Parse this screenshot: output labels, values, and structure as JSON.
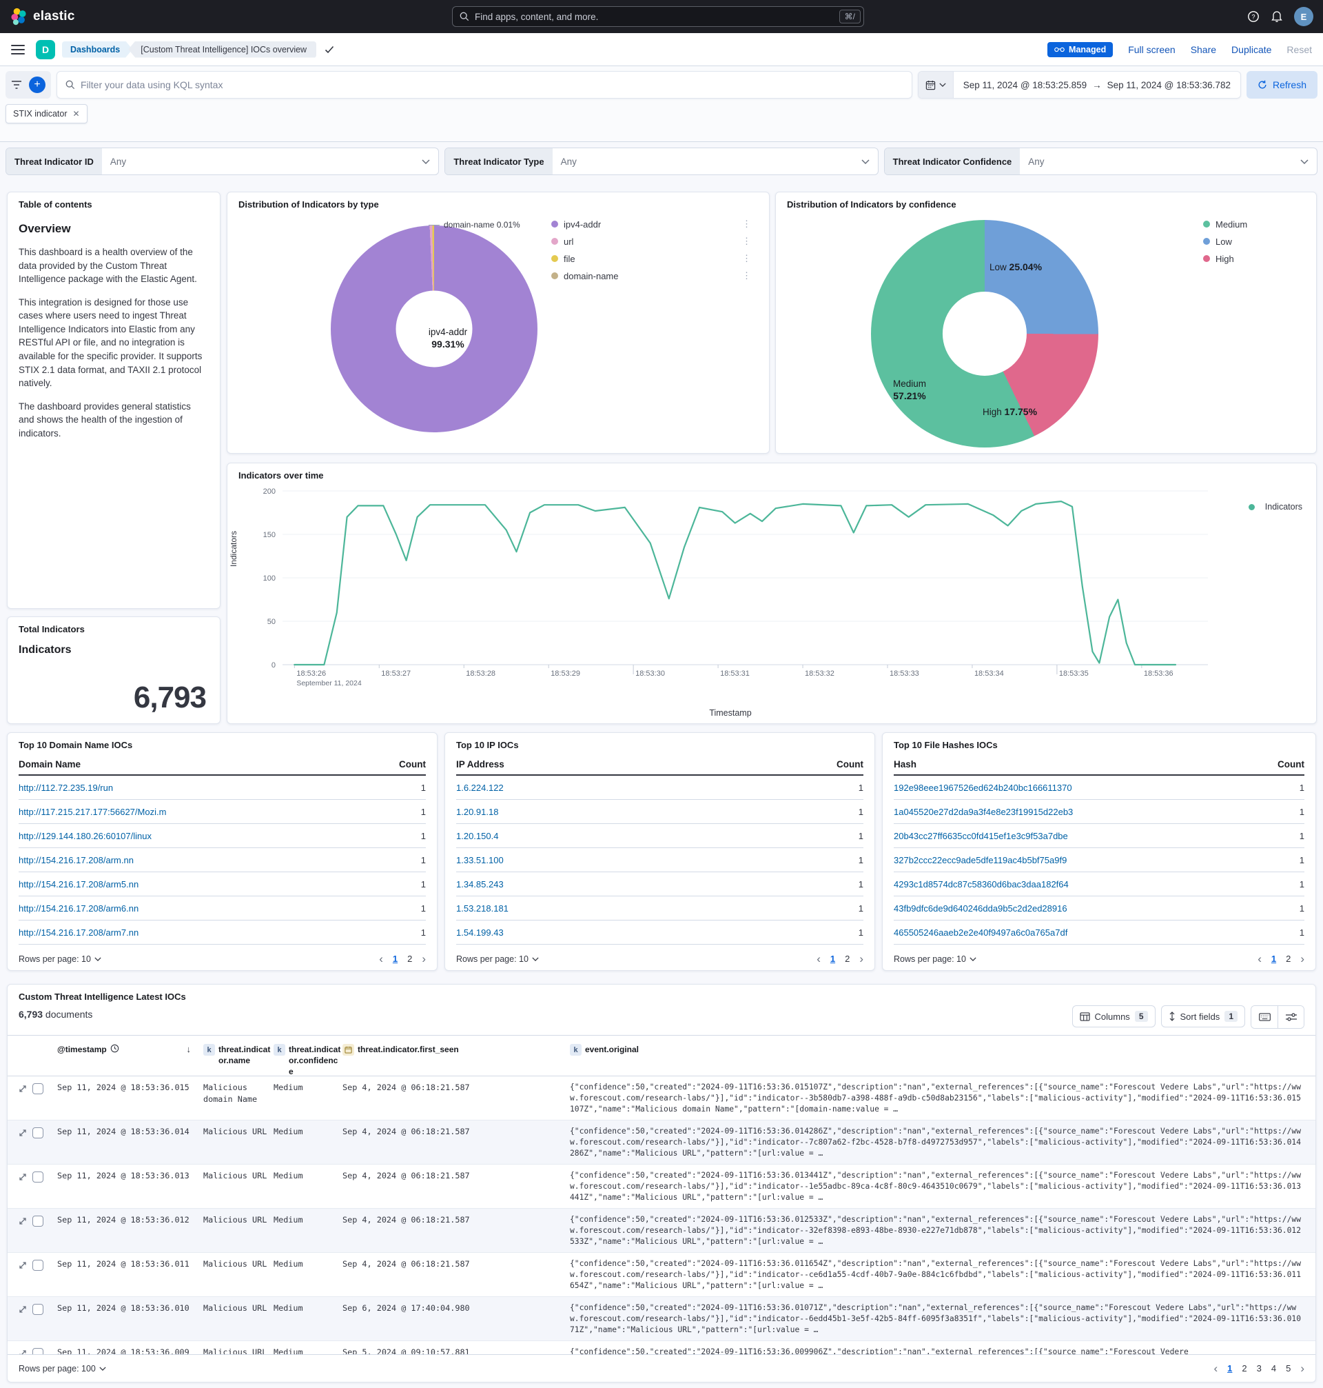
{
  "header": {
    "logo_text": "elastic",
    "search_placeholder": "Find apps, content, and more.",
    "search_shortcut": "⌘/",
    "avatar_initial": "E"
  },
  "breadcrumbs": {
    "app": "Dashboards",
    "page": "[Custom Threat Intelligence] IOCs overview"
  },
  "page_actions": {
    "managed": "Managed",
    "full_screen": "Full screen",
    "share": "Share",
    "duplicate": "Duplicate",
    "reset": "Reset"
  },
  "query_bar": {
    "placeholder": "Filter your data using KQL syntax",
    "date_from": "Sep 11, 2024 @ 18:53:25.859",
    "date_arrow": "→",
    "date_to": "Sep 11, 2024 @ 18:53:36.782",
    "refresh_label": "Refresh",
    "filter_pill": "STIX indicator"
  },
  "controls": [
    {
      "label": "Threat Indicator ID",
      "value": "Any"
    },
    {
      "label": "Threat Indicator Type",
      "value": "Any"
    },
    {
      "label": "Threat Indicator Confidence",
      "value": "Any"
    }
  ],
  "toc": {
    "title": "Table of contents",
    "heading": "Overview",
    "paragraphs": [
      "This dashboard is a health overview of the data provided by the Custom Threat Intelligence package with the Elastic Agent.",
      "This integration is designed for those use cases where users need to ingest Threat Intelligence Indicators into Elastic from any RESTful API or file, and no integration is available for the specific provider. It supports STIX 2.1 data format, and TAXII 2.1 protocol natively.",
      "The dashboard provides general statistics and shows the health of the ingestion of indicators."
    ]
  },
  "chart_data": [
    {
      "type": "pie",
      "title": "Distribution of Indicators by type",
      "slices": [
        {
          "label": "ipv4-addr",
          "pct": 99.31,
          "color": "#a283d3"
        },
        {
          "label": "url",
          "pct": 0.4,
          "color": "#e3a6c9"
        },
        {
          "label": "file",
          "pct": 0.28,
          "color": "#e4ca50"
        },
        {
          "label": "domain-name",
          "pct": 0.01,
          "color": "#c3b189"
        }
      ],
      "inner_label_name": "ipv4-addr",
      "inner_label_pct": "99.31%",
      "callout": "domain-name  0.01%",
      "legend": [
        "ipv4-addr",
        "url",
        "file",
        "domain-name"
      ],
      "legend_position": "right"
    },
    {
      "type": "pie",
      "title": "Distribution of Indicators by confidence",
      "slices": [
        {
          "label": "Low",
          "pct": 25.04,
          "color": "#6f9fd8"
        },
        {
          "label": "High",
          "pct": 17.75,
          "color": "#e0688c"
        },
        {
          "label": "Medium",
          "pct": 57.21,
          "color": "#5cc09f"
        }
      ],
      "labels": [
        {
          "name": "Low",
          "pct": "25.04%"
        },
        {
          "name": "Medium",
          "pct": "57.21%"
        },
        {
          "name": "High",
          "pct": "17.75%"
        }
      ],
      "legend": [
        "Medium",
        "Low",
        "High"
      ],
      "legend_colors": [
        "#5cc09f",
        "#6f9fd8",
        "#e0688c"
      ],
      "legend_position": "right"
    },
    {
      "type": "line",
      "title": "Indicators over time",
      "xlabel": "Timestamp",
      "ylabel": "Indicators",
      "ylim": [
        0,
        200
      ],
      "yticks": [
        0,
        50,
        100,
        150,
        200
      ],
      "xlim": [
        25.859,
        36.782
      ],
      "xticks": [
        "18:53:26",
        "18:53:27",
        "18:53:28",
        "18:53:29",
        "18:53:30",
        "18:53:31",
        "18:53:32",
        "18:53:33",
        "18:53:34",
        "18:53:35",
        "18:53:36"
      ],
      "x_context": "September 11, 2024",
      "legend": [
        "Indicators"
      ],
      "series": [
        {
          "name": "Indicators",
          "color": "#4cb699",
          "points": [
            [
              26.0,
              0
            ],
            [
              26.35,
              0
            ],
            [
              26.5,
              60
            ],
            [
              26.62,
              170
            ],
            [
              26.75,
              183
            ],
            [
              27.05,
              183
            ],
            [
              27.2,
              150
            ],
            [
              27.32,
              120
            ],
            [
              27.45,
              170
            ],
            [
              27.6,
              184
            ],
            [
              28.25,
              184
            ],
            [
              28.5,
              155
            ],
            [
              28.62,
              130
            ],
            [
              28.78,
              175
            ],
            [
              28.95,
              184
            ],
            [
              29.35,
              184
            ],
            [
              29.55,
              177
            ],
            [
              29.9,
              181
            ],
            [
              30.2,
              140
            ],
            [
              30.42,
              76
            ],
            [
              30.6,
              135
            ],
            [
              30.78,
              181
            ],
            [
              31.05,
              176
            ],
            [
              31.2,
              163
            ],
            [
              31.38,
              174
            ],
            [
              31.52,
              165
            ],
            [
              31.68,
              180
            ],
            [
              32.0,
              185
            ],
            [
              32.45,
              183
            ],
            [
              32.6,
              152
            ],
            [
              32.75,
              183
            ],
            [
              33.05,
              184
            ],
            [
              33.25,
              170
            ],
            [
              33.45,
              184
            ],
            [
              33.95,
              185
            ],
            [
              34.25,
              172
            ],
            [
              34.42,
              160
            ],
            [
              34.58,
              177
            ],
            [
              34.75,
              185
            ],
            [
              35.05,
              188
            ],
            [
              35.18,
              182
            ],
            [
              35.3,
              90
            ],
            [
              35.42,
              15
            ],
            [
              35.5,
              2
            ],
            [
              35.62,
              55
            ],
            [
              35.72,
              75
            ],
            [
              35.82,
              25
            ],
            [
              35.92,
              0
            ],
            [
              36.4,
              0
            ]
          ]
        }
      ]
    }
  ],
  "total_panel": {
    "title": "Total Indicators",
    "label": "Indicators",
    "value": "6,793"
  },
  "top_tables": [
    {
      "title": "Top 10 Domain Name IOCs",
      "col_key": "Domain Name",
      "col_count": "Count",
      "rows": [
        [
          "http://112.72.235.19/run",
          "1"
        ],
        [
          "http://117.215.217.177:56627/Mozi.m",
          "1"
        ],
        [
          "http://129.144.180.26:60107/linux",
          "1"
        ],
        [
          "http://154.216.17.208/arm.nn",
          "1"
        ],
        [
          "http://154.216.17.208/arm5.nn",
          "1"
        ],
        [
          "http://154.216.17.208/arm6.nn",
          "1"
        ],
        [
          "http://154.216.17.208/arm7.nn",
          "1"
        ]
      ],
      "rows_per_page": "Rows per page: 10",
      "pages": [
        "1",
        "2"
      ],
      "active_page": "1"
    },
    {
      "title": "Top 10 IP IOCs",
      "col_key": "IP Address",
      "col_count": "Count",
      "rows": [
        [
          "1.6.224.122",
          "1"
        ],
        [
          "1.20.91.18",
          "1"
        ],
        [
          "1.20.150.4",
          "1"
        ],
        [
          "1.33.51.100",
          "1"
        ],
        [
          "1.34.85.243",
          "1"
        ],
        [
          "1.53.218.181",
          "1"
        ],
        [
          "1.54.199.43",
          "1"
        ]
      ],
      "rows_per_page": "Rows per page: 10",
      "pages": [
        "1",
        "2"
      ],
      "active_page": "1"
    },
    {
      "title": "Top 10 File Hashes IOCs",
      "col_key": "Hash",
      "col_count": "Count",
      "rows": [
        [
          "192e98eee1967526ed624b240bc166611370",
          "1"
        ],
        [
          "1a045520e27d2da9a3f4e8e23f19915d22eb3",
          "1"
        ],
        [
          "20b43cc27ff6635cc0fd415ef1e3c9f53a7dbe",
          "1"
        ],
        [
          "327b2ccc22ecc9ade5dfe119ac4b5bf75a9f9",
          "1"
        ],
        [
          "4293c1d8574dc87c58360d6bac3daa182f64",
          "1"
        ],
        [
          "43fb9dfc6de9d640246dda9b5c2d2ed28916",
          "1"
        ],
        [
          "465505246aaeb2e2e40f9497a6c0a765a7df",
          "1"
        ]
      ],
      "rows_per_page": "Rows per page: 10",
      "pages": [
        "1",
        "2"
      ],
      "active_page": "1"
    }
  ],
  "documents": {
    "title": "Custom Threat Intelligence Latest IOCs",
    "count": "6,793",
    "count_suffix": " documents",
    "toolbar": {
      "columns_label": "Columns",
      "columns_count": "5",
      "sort_label": "Sort fields",
      "sort_count": "1"
    },
    "columns": [
      {
        "label": "@timestamp",
        "icon": "clock-icon",
        "sorted": "desc"
      },
      {
        "label": "threat.indicator.name",
        "icon": "keyword-icon"
      },
      {
        "label": "threat.indicator.confidence",
        "icon": "keyword-icon"
      },
      {
        "label": "threat.indicator.first_seen",
        "icon": "calendar-icon"
      },
      {
        "label": "event.original",
        "icon": "keyword-icon"
      }
    ],
    "rows": [
      {
        "timestamp": "Sep 11, 2024 @ 18:53:36.015",
        "name": "Malicious domain Name",
        "confidence": "Medium",
        "first_seen": "Sep 4, 2024 @ 06:18:21.587",
        "original": "{\"confidence\":50,\"created\":\"2024-09-11T16:53:36.015107Z\",\"description\":\"nan\",\"external_references\":[{\"source_name\":\"Forescout Vedere Labs\",\"url\":\"https://www.forescout.com/research-labs/\"}],\"id\":\"indicator--3b580db7-a398-488f-a9db-c50d8ab23156\",\"labels\":[\"malicious-activity\"],\"modified\":\"2024-09-11T16:53:36.015107Z\",\"name\":\"Malicious domain Name\",\"pattern\":\"[domain-name:value = …"
      },
      {
        "timestamp": "Sep 11, 2024 @ 18:53:36.014",
        "name": "Malicious URL",
        "confidence": "Medium",
        "first_seen": "Sep 4, 2024 @ 06:18:21.587",
        "original": "{\"confidence\":50,\"created\":\"2024-09-11T16:53:36.014286Z\",\"description\":\"nan\",\"external_references\":[{\"source_name\":\"Forescout Vedere Labs\",\"url\":\"https://www.forescout.com/research-labs/\"}],\"id\":\"indicator--7c807a62-f2bc-4528-b7f8-d4972753d957\",\"labels\":[\"malicious-activity\"],\"modified\":\"2024-09-11T16:53:36.014286Z\",\"name\":\"Malicious URL\",\"pattern\":\"[url:value = …"
      },
      {
        "timestamp": "Sep 11, 2024 @ 18:53:36.013",
        "name": "Malicious URL",
        "confidence": "Medium",
        "first_seen": "Sep 4, 2024 @ 06:18:21.587",
        "original": "{\"confidence\":50,\"created\":\"2024-09-11T16:53:36.013441Z\",\"description\":\"nan\",\"external_references\":[{\"source_name\":\"Forescout Vedere Labs\",\"url\":\"https://www.forescout.com/research-labs/\"}],\"id\":\"indicator--1e55adbc-89ca-4c8f-80c9-4643510c0679\",\"labels\":[\"malicious-activity\"],\"modified\":\"2024-09-11T16:53:36.013441Z\",\"name\":\"Malicious URL\",\"pattern\":\"[url:value = …"
      },
      {
        "timestamp": "Sep 11, 2024 @ 18:53:36.012",
        "name": "Malicious URL",
        "confidence": "Medium",
        "first_seen": "Sep 4, 2024 @ 06:18:21.587",
        "original": "{\"confidence\":50,\"created\":\"2024-09-11T16:53:36.012533Z\",\"description\":\"nan\",\"external_references\":[{\"source_name\":\"Forescout Vedere Labs\",\"url\":\"https://www.forescout.com/research-labs/\"}],\"id\":\"indicator--32ef8398-e893-48be-8930-e227e71db878\",\"labels\":[\"malicious-activity\"],\"modified\":\"2024-09-11T16:53:36.012533Z\",\"name\":\"Malicious URL\",\"pattern\":\"[url:value = …"
      },
      {
        "timestamp": "Sep 11, 2024 @ 18:53:36.011",
        "name": "Malicious URL",
        "confidence": "Medium",
        "first_seen": "Sep 4, 2024 @ 06:18:21.587",
        "original": "{\"confidence\":50,\"created\":\"2024-09-11T16:53:36.011654Z\",\"description\":\"nan\",\"external_references\":[{\"source_name\":\"Forescout Vedere Labs\",\"url\":\"https://www.forescout.com/research-labs/\"}],\"id\":\"indicator--ce6d1a55-4cdf-40b7-9a0e-884c1c6fbdbd\",\"labels\":[\"malicious-activity\"],\"modified\":\"2024-09-11T16:53:36.011654Z\",\"name\":\"Malicious URL\",\"pattern\":\"[url:value = …"
      },
      {
        "timestamp": "Sep 11, 2024 @ 18:53:36.010",
        "name": "Malicious URL",
        "confidence": "Medium",
        "first_seen": "Sep 6, 2024 @ 17:40:04.980",
        "original": "{\"confidence\":50,\"created\":\"2024-09-11T16:53:36.01071Z\",\"description\":\"nan\",\"external_references\":[{\"source_name\":\"Forescout Vedere Labs\",\"url\":\"https://www.forescout.com/research-labs/\"}],\"id\":\"indicator--6edd45b1-3e5f-42b5-84ff-6095f3a8351f\",\"labels\":[\"malicious-activity\"],\"modified\":\"2024-09-11T16:53:36.01071Z\",\"name\":\"Malicious URL\",\"pattern\":\"[url:value = …"
      },
      {
        "timestamp": "Sep 11, 2024 @ 18:53:36.009",
        "name": "Malicious URL",
        "confidence": "Medium",
        "first_seen": "Sep 5, 2024 @ 09:10:57.881",
        "original": "{\"confidence\":50,\"created\":\"2024-09-11T16:53:36.009906Z\",\"description\":\"nan\",\"external_references\":[{\"source_name\":\"Forescout Vedere"
      }
    ],
    "footer": {
      "rows_per_page": "Rows per page: 100",
      "pages": [
        "1",
        "2",
        "3",
        "4",
        "5"
      ],
      "active_page": "1"
    }
  }
}
